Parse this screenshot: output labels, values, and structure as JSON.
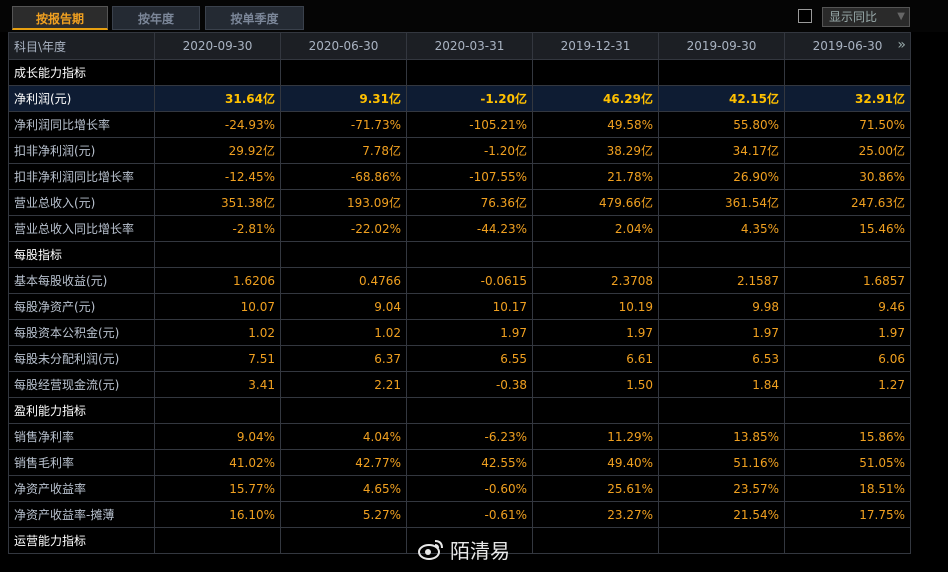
{
  "tabs": [
    {
      "label": "按报告期",
      "active": true
    },
    {
      "label": "按年度",
      "active": false
    },
    {
      "label": "按单季度",
      "active": false
    }
  ],
  "options": {
    "yoy_label": "显示同比",
    "yoy_checked": false
  },
  "table": {
    "header_label": "科目\\年度",
    "periods": [
      "2020-09-30",
      "2020-06-30",
      "2020-03-31",
      "2019-12-31",
      "2019-09-30",
      "2019-06-30"
    ],
    "rows": [
      {
        "type": "section",
        "label": "成长能力指标"
      },
      {
        "type": "highlight",
        "label": "净利润(元)",
        "values": [
          "31.64亿",
          "9.31亿",
          "-1.20亿",
          "46.29亿",
          "42.15亿",
          "32.91亿"
        ]
      },
      {
        "type": "data",
        "label": "净利润同比增长率",
        "values": [
          "-24.93%",
          "-71.73%",
          "-105.21%",
          "49.58%",
          "55.80%",
          "71.50%"
        ]
      },
      {
        "type": "data",
        "label": "扣非净利润(元)",
        "values": [
          "29.92亿",
          "7.78亿",
          "-1.20亿",
          "38.29亿",
          "34.17亿",
          "25.00亿"
        ]
      },
      {
        "type": "data",
        "label": "扣非净利润同比增长率",
        "values": [
          "-12.45%",
          "-68.86%",
          "-107.55%",
          "21.78%",
          "26.90%",
          "30.86%"
        ]
      },
      {
        "type": "data",
        "label": "营业总收入(元)",
        "values": [
          "351.38亿",
          "193.09亿",
          "76.36亿",
          "479.66亿",
          "361.54亿",
          "247.63亿"
        ]
      },
      {
        "type": "data",
        "label": "营业总收入同比增长率",
        "values": [
          "-2.81%",
          "-22.02%",
          "-44.23%",
          "2.04%",
          "4.35%",
          "15.46%"
        ]
      },
      {
        "type": "section",
        "label": "每股指标"
      },
      {
        "type": "data",
        "label": "基本每股收益(元)",
        "values": [
          "1.6206",
          "0.4766",
          "-0.0615",
          "2.3708",
          "2.1587",
          "1.6857"
        ]
      },
      {
        "type": "data",
        "label": "每股净资产(元)",
        "values": [
          "10.07",
          "9.04",
          "10.17",
          "10.19",
          "9.98",
          "9.46"
        ]
      },
      {
        "type": "data",
        "label": "每股资本公积金(元)",
        "values": [
          "1.02",
          "1.02",
          "1.97",
          "1.97",
          "1.97",
          "1.97"
        ]
      },
      {
        "type": "data",
        "label": "每股未分配利润(元)",
        "values": [
          "7.51",
          "6.37",
          "6.55",
          "6.61",
          "6.53",
          "6.06"
        ]
      },
      {
        "type": "data",
        "label": "每股经营现金流(元)",
        "values": [
          "3.41",
          "2.21",
          "-0.38",
          "1.50",
          "1.84",
          "1.27"
        ]
      },
      {
        "type": "section",
        "label": "盈利能力指标"
      },
      {
        "type": "data",
        "label": "销售净利率",
        "values": [
          "9.04%",
          "4.04%",
          "-6.23%",
          "11.29%",
          "13.85%",
          "15.86%"
        ]
      },
      {
        "type": "data",
        "label": "销售毛利率",
        "values": [
          "41.02%",
          "42.77%",
          "42.55%",
          "49.40%",
          "51.16%",
          "51.05%"
        ]
      },
      {
        "type": "data",
        "label": "净资产收益率",
        "values": [
          "15.77%",
          "4.65%",
          "-0.60%",
          "25.61%",
          "23.57%",
          "18.51%"
        ]
      },
      {
        "type": "data",
        "label": "净资产收益率-摊薄",
        "values": [
          "16.10%",
          "5.27%",
          "-0.61%",
          "23.27%",
          "21.54%",
          "17.75%"
        ]
      },
      {
        "type": "section",
        "label": "运营能力指标"
      }
    ]
  },
  "watermark": {
    "text": "陌清易",
    "icon": "weibo-icon"
  }
}
